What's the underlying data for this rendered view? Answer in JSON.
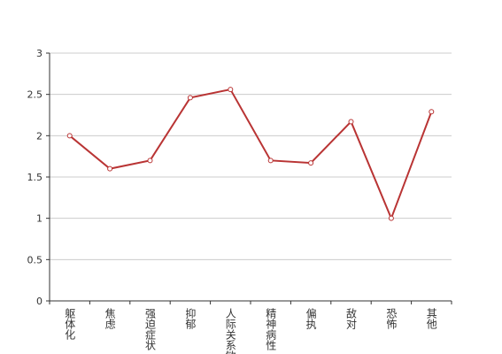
{
  "chart_data": {
    "type": "line",
    "categories": [
      "躯体化",
      "焦虑",
      "强迫症状",
      "抑郁",
      "人际关系敏感",
      "精神病性",
      "偏执",
      "敌对",
      "恐怖",
      "其他"
    ],
    "series": [
      {
        "color": "#b93434",
        "values": [
          2.0,
          1.6,
          1.7,
          2.46,
          2.56,
          1.7,
          1.67,
          2.17,
          1.0,
          2.29
        ]
      }
    ],
    "ylim": [
      0,
      3
    ],
    "yticks": [
      0,
      0.5,
      1,
      1.5,
      2,
      2.5,
      3
    ],
    "grid": true
  }
}
